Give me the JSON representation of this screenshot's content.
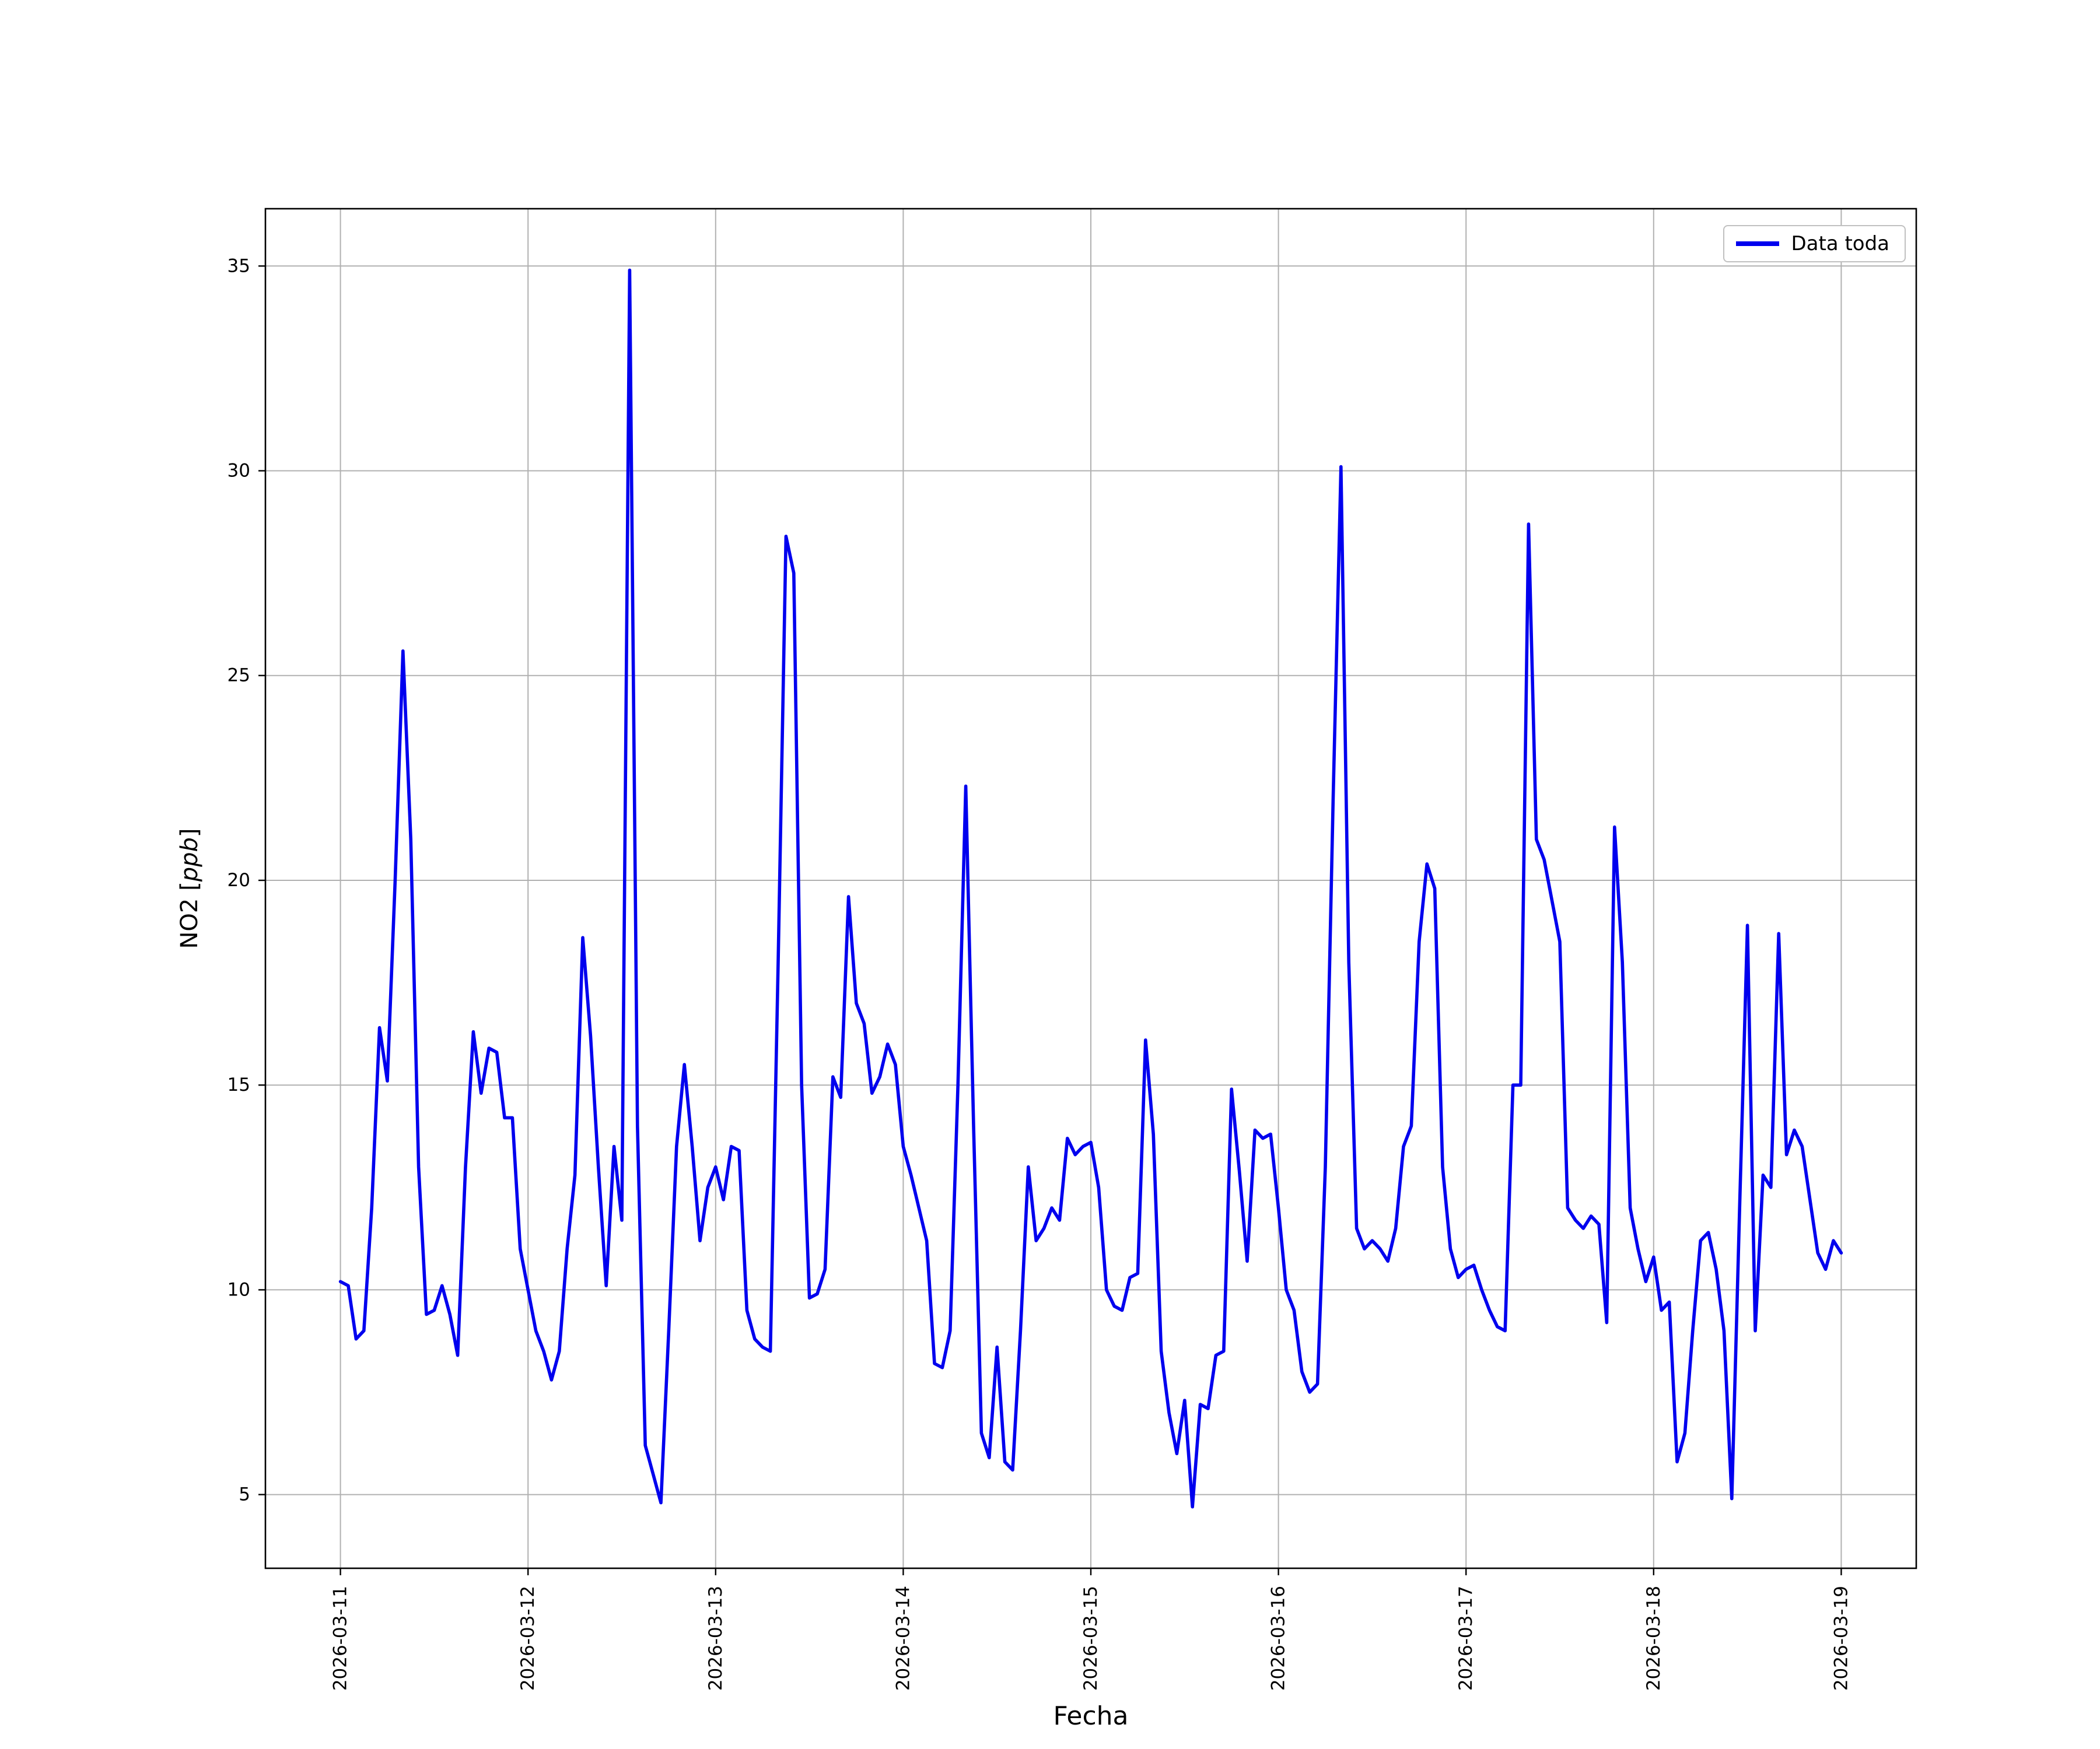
{
  "figure": {
    "background": "#ffffff"
  },
  "chart_data": {
    "type": "line",
    "title": "",
    "xlabel": "Fecha",
    "ylabel": "NO2 [ppb]",
    "ylabel_prefix": "NO2 [",
    "ylabel_italic": "ppb",
    "ylabel_suffix": "]",
    "legend": [
      "Data toda"
    ],
    "legend_position": "upper right",
    "grid": true,
    "line_color": "#0000ee",
    "grid_color": "#b0b0b0",
    "x_tick_labels": [
      "2026-03-11",
      "2026-03-12",
      "2026-03-13",
      "2026-03-14",
      "2026-03-15",
      "2026-03-16",
      "2026-03-17",
      "2026-03-18",
      "2026-03-19"
    ],
    "y_ticks": [
      5,
      10,
      15,
      20,
      25,
      30,
      35
    ],
    "ylim": [
      3.2,
      36.4
    ],
    "x_hours_span": 192,
    "x_margin_hours": 9.6,
    "x_tick_every_hours": 24,
    "series": [
      {
        "name": "Data toda",
        "x_start": "2026-03-11 00:00",
        "x_step_hours": 1,
        "values": [
          10.2,
          10.1,
          8.8,
          9.0,
          12.0,
          16.4,
          15.1,
          20.0,
          25.6,
          21.0,
          13.0,
          9.4,
          9.5,
          10.1,
          9.4,
          8.4,
          13.0,
          16.3,
          14.8,
          15.9,
          15.8,
          14.2,
          14.2,
          11.0,
          10.0,
          9.0,
          8.5,
          7.8,
          8.5,
          11.0,
          12.8,
          18.6,
          16.2,
          13.0,
          10.1,
          13.5,
          11.7,
          34.9,
          14.0,
          6.2,
          5.5,
          4.8,
          9.0,
          13.5,
          15.5,
          13.5,
          11.2,
          12.5,
          13.0,
          12.2,
          13.5,
          13.4,
          9.5,
          8.8,
          8.6,
          8.5,
          18.0,
          28.4,
          27.5,
          15.0,
          9.8,
          9.9,
          10.5,
          15.2,
          14.7,
          19.6,
          17.0,
          16.5,
          14.8,
          15.2,
          16.0,
          15.5,
          13.5,
          12.8,
          12.0,
          11.2,
          8.2,
          8.1,
          9.0,
          15.0,
          22.3,
          14.0,
          6.5,
          5.9,
          8.6,
          5.8,
          5.6,
          9.0,
          13.0,
          11.2,
          11.5,
          12.0,
          11.7,
          13.7,
          13.3,
          13.5,
          13.6,
          12.5,
          10.0,
          9.6,
          9.5,
          10.3,
          10.4,
          16.1,
          13.8,
          8.5,
          7.0,
          6.0,
          7.3,
          4.7,
          7.2,
          7.1,
          8.4,
          8.5,
          14.9,
          12.9,
          10.7,
          13.9,
          13.7,
          13.8,
          12.0,
          10.0,
          9.5,
          8.0,
          7.5,
          7.7,
          13.0,
          22.0,
          30.1,
          18.0,
          11.5,
          11.0,
          11.2,
          11.0,
          10.7,
          11.5,
          13.5,
          14.0,
          18.5,
          20.4,
          19.8,
          13.0,
          11.0,
          10.3,
          10.5,
          10.6,
          10.0,
          9.5,
          9.1,
          9.0,
          15.0,
          15.0,
          28.7,
          21.0,
          20.5,
          19.5,
          18.5,
          12.0,
          11.7,
          11.5,
          11.8,
          11.6,
          9.2,
          21.3,
          18.0,
          12.0,
          11.0,
          10.2,
          10.8,
          9.5,
          9.7,
          5.8,
          6.5,
          9.0,
          11.2,
          11.4,
          10.5,
          9.0,
          4.9,
          12.0,
          18.9,
          9.0,
          12.8,
          12.5,
          18.7,
          13.3,
          13.9,
          13.5,
          12.2,
          10.9,
          10.5,
          11.2,
          10.9
        ]
      }
    ]
  }
}
